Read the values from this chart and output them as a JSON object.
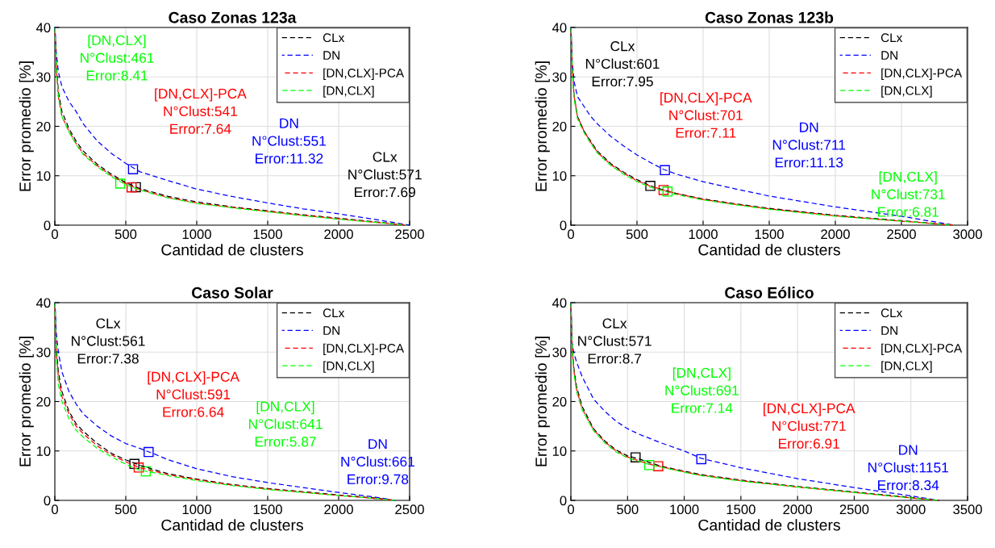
{
  "chart_data": [
    {
      "type": "line",
      "title": "Caso Zonas 123a",
      "xlabel": "Cantidad de clusters",
      "ylabel": "Error promedio [%]",
      "xlim": [
        0,
        2500
      ],
      "xticks": [
        0,
        500,
        1000,
        1500,
        2000,
        2500
      ],
      "ylim": [
        0,
        40
      ],
      "yticks": [
        0,
        10,
        20,
        30,
        40
      ],
      "grid": true,
      "legend": "top right",
      "line_style": "dashed",
      "marker": "none",
      "x": [
        1,
        10,
        25,
        50,
        100,
        150,
        200,
        300,
        400,
        500,
        600,
        800,
        1000,
        1250,
        1500,
        1750,
        2000,
        2250,
        2480
      ],
      "series": [
        {
          "name": "CLx",
          "color": "#000000",
          "values": [
            40,
            33,
            27,
            23,
            19.5,
            17,
            15,
            12.3,
            10.3,
            8.6,
            7.4,
            5.8,
            4.7,
            3.7,
            2.9,
            2.1,
            1.4,
            0.7,
            0
          ]
        },
        {
          "name": "DN",
          "color": "#0000ff",
          "x": [
            1,
            10,
            25,
            50,
            100,
            150,
            200,
            300,
            400,
            500,
            600,
            800,
            1000,
            1250,
            1500,
            1750,
            2000,
            2250,
            2500
          ],
          "values": [
            40,
            35,
            31,
            28,
            25,
            23,
            20.5,
            17,
            14.5,
            12.5,
            10.8,
            9,
            7.3,
            5.8,
            4.5,
            3.3,
            2.3,
            1.2,
            0
          ]
        },
        {
          "name": "[DN,CLX]-PCA",
          "color": "#ff0000",
          "values": [
            40,
            32,
            26,
            22,
            19,
            16.5,
            14.5,
            12,
            10,
            8.4,
            7.2,
            5.6,
            4.5,
            3.6,
            2.8,
            2,
            1.3,
            0.6,
            0
          ]
        },
        {
          "name": "[DN,CLX]",
          "color": "#00ff00",
          "values": [
            40,
            32,
            26,
            22,
            18.8,
            16.3,
            14.3,
            11.8,
            9.8,
            8.2,
            7.1,
            5.5,
            4.4,
            3.5,
            2.7,
            1.9,
            1.2,
            0.6,
            0
          ]
        },
        {
          "type": "scatter",
          "marker": "square",
          "x": [
            571,
            551,
            541,
            461
          ],
          "values": [
            7.69,
            11.32,
            7.64,
            8.41
          ],
          "colors": [
            "#000000",
            "#0000ff",
            "#ff0000",
            "#00ff00"
          ]
        }
      ],
      "annotations": [
        "CLx\nN°Clust:571\nError:7.69",
        "DN\nN°Clust:551\nError:11.32",
        "[DN,CLX]-PCA\nN°Clust:541\nError:7.64",
        "[DN,CLX]\nN°Clust:461\nError:8.41"
      ]
    },
    {
      "type": "line",
      "title": "Caso Zonas 123b",
      "xlabel": "Cantidad de clusters",
      "ylabel": "Error promedio [%]",
      "xlim": [
        0,
        3000
      ],
      "xticks": [
        0,
        500,
        1000,
        1500,
        2000,
        2500,
        3000
      ],
      "ylim": [
        0,
        40
      ],
      "yticks": [
        0,
        10,
        20,
        30,
        40
      ],
      "grid": true,
      "legend": "top right",
      "line_style": "dashed",
      "marker": "none",
      "x": [
        1,
        10,
        25,
        50,
        100,
        150,
        200,
        300,
        400,
        500,
        600,
        700,
        800,
        1000,
        1250,
        1500,
        2000,
        2500,
        2900
      ],
      "series": [
        {
          "name": "CLx",
          "color": "#000000",
          "values": [
            40,
            32,
            26,
            22,
            19,
            17,
            15,
            12.5,
            10.7,
            9.2,
            8,
            7.1,
            6.4,
            5.3,
            4.3,
            3.4,
            2,
            0.9,
            0
          ]
        },
        {
          "name": "DN",
          "color": "#0000ff",
          "values": [
            40,
            33,
            29,
            26,
            24,
            22,
            20.5,
            18,
            16,
            14.2,
            12.7,
            11.3,
            10.3,
            8.8,
            7.3,
            5.9,
            3.7,
            1.8,
            0
          ]
        },
        {
          "name": "[DN,CLX]-PCA",
          "color": "#ff0000",
          "values": [
            40,
            32,
            26,
            22,
            19,
            16.8,
            14.8,
            12.3,
            10.5,
            9,
            7.9,
            7.1,
            6.4,
            5.2,
            4.2,
            3.3,
            1.9,
            0.8,
            0
          ]
        },
        {
          "name": "[DN,CLX]",
          "color": "#00ff00",
          "values": [
            40,
            31,
            25.5,
            21.5,
            18.7,
            16.5,
            14.6,
            12.1,
            10.3,
            8.8,
            7.7,
            6.9,
            6.2,
            5.1,
            4.1,
            3.2,
            1.8,
            0.8,
            0
          ]
        },
        {
          "type": "scatter",
          "marker": "square",
          "x": [
            601,
            711,
            701,
            731
          ],
          "values": [
            7.95,
            11.13,
            7.11,
            6.81
          ],
          "colors": [
            "#000000",
            "#0000ff",
            "#ff0000",
            "#00ff00"
          ]
        }
      ],
      "annotations": [
        "CLx\nN°Clust:601\nError:7.95",
        "DN\nN°Clust:711\nError:11.13",
        "[DN,CLX]-PCA\nN°Clust:701\nError:7.11",
        "[DN,CLX]\nN°Clust:731\nError:6.81"
      ]
    },
    {
      "type": "line",
      "title": "Caso Solar",
      "xlabel": "Cantidad de clusters",
      "ylabel": "Error promedio [%]",
      "xlim": [
        0,
        2500
      ],
      "xticks": [
        0,
        500,
        1000,
        1500,
        2000,
        2500
      ],
      "ylim": [
        0,
        40
      ],
      "yticks": [
        0,
        10,
        20,
        30,
        40
      ],
      "grid": true,
      "legend": "top right",
      "line_style": "dashed",
      "marker": "none",
      "x": [
        1,
        10,
        25,
        50,
        100,
        150,
        200,
        300,
        400,
        500,
        600,
        700,
        800,
        1000,
        1250,
        1500,
        2000,
        2250,
        2400
      ],
      "series": [
        {
          "name": "CLx",
          "color": "#000000",
          "values": [
            40,
            31,
            26,
            22,
            18,
            15.5,
            14,
            11.5,
            9.5,
            8.2,
            7.1,
            6.2,
            5.4,
            4.3,
            3.2,
            2.4,
            1.1,
            0.5,
            0
          ]
        },
        {
          "name": "DN",
          "color": "#0000ff",
          "values": [
            40,
            34,
            30,
            26,
            22,
            19.5,
            17.5,
            15,
            13,
            11.5,
            10.5,
            9.4,
            8.2,
            6.4,
            4.8,
            3.6,
            1.6,
            0.7,
            0
          ]
        },
        {
          "name": "[DN,CLX]-PCA",
          "color": "#ff0000",
          "values": [
            40,
            30,
            25,
            21,
            17.5,
            15,
            13.5,
            11,
            9.2,
            7.8,
            6.6,
            5.9,
            5.2,
            4.2,
            3.1,
            2.3,
            1,
            0.4,
            0
          ]
        },
        {
          "name": "[DN,CLX]",
          "color": "#00ff00",
          "values": [
            40,
            29,
            23.5,
            20,
            16.5,
            14.2,
            12.8,
            10.5,
            8.8,
            7.3,
            6.1,
            5.6,
            5,
            4,
            3,
            2.2,
            1,
            0.4,
            0
          ]
        },
        {
          "type": "scatter",
          "marker": "square",
          "x": [
            561,
            661,
            591,
            641
          ],
          "values": [
            7.38,
            9.78,
            6.64,
            5.87
          ],
          "colors": [
            "#000000",
            "#0000ff",
            "#ff0000",
            "#00ff00"
          ]
        }
      ],
      "annotations": [
        "CLx\nN°Clust:561\nError:7.38",
        "DN\nN°Clust:661\nError:9.78",
        "[DN,CLX]-PCA\nN°Clust:591\nError:6.64",
        "[DN,CLX]\nN°Clust:641\nError:5.87"
      ]
    },
    {
      "type": "line",
      "title": "Caso Eólico",
      "xlabel": "Cantidad de clusters",
      "ylabel": "Error promedio [%]",
      "xlim": [
        0,
        3500
      ],
      "xticks": [
        0,
        500,
        1000,
        1500,
        2000,
        2500,
        3000,
        3500
      ],
      "ylim": [
        0,
        40
      ],
      "yticks": [
        0,
        10,
        20,
        30,
        40
      ],
      "grid": true,
      "legend": "top right",
      "line_style": "dashed",
      "marker": "none",
      "x": [
        1,
        10,
        25,
        50,
        100,
        200,
        300,
        400,
        500,
        600,
        700,
        800,
        1000,
        1151,
        1500,
        2000,
        2500,
        3000,
        3250
      ],
      "series": [
        {
          "name": "CLx",
          "color": "#000000",
          "values": [
            40,
            32,
            27,
            23,
            19,
            14.5,
            12,
            10.2,
            9,
            8.4,
            7.6,
            6.9,
            5.9,
            5.2,
            4.1,
            2.8,
            1.7,
            0.6,
            0
          ]
        },
        {
          "name": "DN",
          "color": "#0000ff",
          "values": [
            40,
            32,
            30,
            28,
            25,
            20.5,
            18,
            16,
            14.5,
            13.4,
            12.5,
            11.6,
            10,
            8.5,
            6.6,
            4.4,
            2.6,
            0.9,
            0
          ]
        },
        {
          "name": "[DN,CLX]-PCA",
          "color": "#ff0000",
          "values": [
            40,
            31.5,
            26.5,
            22.5,
            18.5,
            14.3,
            11.8,
            10,
            8.8,
            8,
            7.3,
            6.8,
            5.8,
            5.1,
            4,
            2.7,
            1.6,
            0.5,
            0
          ]
        },
        {
          "name": "[DN,CLX]",
          "color": "#00ff00",
          "values": [
            40,
            31,
            26,
            22,
            18.3,
            14.1,
            11.6,
            9.8,
            8.6,
            7.9,
            7.2,
            6.7,
            5.7,
            5,
            3.9,
            2.7,
            1.6,
            0.5,
            0
          ]
        },
        {
          "type": "scatter",
          "marker": "square",
          "x": [
            571,
            1151,
            771,
            691
          ],
          "values": [
            8.7,
            8.34,
            6.91,
            7.14
          ],
          "colors": [
            "#000000",
            "#0000ff",
            "#ff0000",
            "#00ff00"
          ]
        }
      ],
      "annotations": [
        "CLx\nN°Clust:571\nError:8.7",
        "DN\nN°Clust:1151\nError:8.34",
        "[DN,CLX]-PCA\nN°Clust:771\nError:6.91",
        "[DN,CLX]\nN°Clust:691\nError:7.14"
      ]
    }
  ]
}
